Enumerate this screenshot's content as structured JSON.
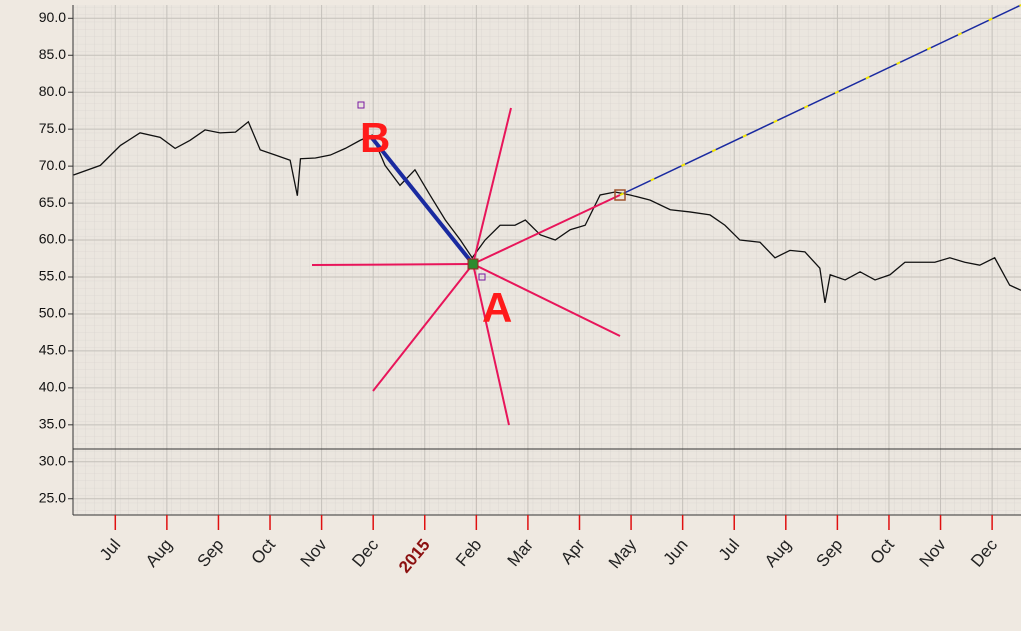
{
  "chart_data": {
    "type": "line",
    "annotations": [
      "A",
      "B"
    ],
    "xlim": [
      -0.82,
      17.56
    ],
    "xticks": [
      {
        "value": 0,
        "label": "Jul"
      },
      {
        "value": 1,
        "label": "Aug"
      },
      {
        "value": 2,
        "label": "Sep"
      },
      {
        "value": 3,
        "label": "Oct"
      },
      {
        "value": 4,
        "label": "Nov"
      },
      {
        "value": 5,
        "label": "Dec"
      },
      {
        "value": 6,
        "label": "2015"
      },
      {
        "value": 7,
        "label": "Feb"
      },
      {
        "value": 8,
        "label": "Mar"
      },
      {
        "value": 9,
        "label": "Apr"
      },
      {
        "value": 10,
        "label": "May"
      },
      {
        "value": 11,
        "label": "Jun"
      },
      {
        "value": 12,
        "label": "Jul"
      },
      {
        "value": 13,
        "label": "Aug"
      },
      {
        "value": 14,
        "label": "Sep"
      },
      {
        "value": 15,
        "label": "Oct"
      },
      {
        "value": 16,
        "label": "Nov"
      },
      {
        "value": 17,
        "label": "Dec"
      }
    ],
    "ylim": [
      22.8,
      91.8
    ],
    "yticks": [
      {
        "value": 90,
        "label": "90.0"
      },
      {
        "value": 85,
        "label": "85.0"
      },
      {
        "value": 80,
        "label": "80.0"
      },
      {
        "value": 75,
        "label": "75.0"
      },
      {
        "value": 70,
        "label": "70.0"
      },
      {
        "value": 65,
        "label": "65.0"
      },
      {
        "value": 60,
        "label": "60.0"
      },
      {
        "value": 55,
        "label": "55.0"
      },
      {
        "value": 50,
        "label": "50.0"
      },
      {
        "value": 45,
        "label": "45.0"
      },
      {
        "value": 40,
        "label": "40.0"
      },
      {
        "value": 35,
        "label": "35.0"
      },
      {
        "value": 30,
        "label": "30.0"
      },
      {
        "value": 25,
        "label": "25.0"
      }
    ],
    "grid": true,
    "x": [
      -0.81,
      -0.29,
      0.1,
      0.48,
      0.87,
      1.16,
      1.45,
      1.74,
      2.03,
      2.33,
      2.58,
      2.81,
      3.1,
      3.39,
      3.53,
      3.59,
      3.88,
      4.17,
      4.46,
      4.75,
      4.98,
      5.23,
      5.52,
      5.81,
      6.1,
      6.4,
      6.69,
      6.92,
      7.17,
      7.46,
      7.75,
      7.95,
      8.24,
      8.53,
      8.82,
      9.11,
      9.4,
      9.69,
      9.98,
      10.37,
      10.76,
      11.14,
      11.53,
      11.82,
      12.11,
      12.5,
      12.79,
      13.08,
      13.37,
      13.66,
      13.76,
      13.86,
      14.15,
      14.44,
      14.73,
      15.02,
      15.31,
      15.6,
      15.89,
      16.18,
      16.47,
      16.76,
      17.05,
      17.34,
      17.56
    ],
    "series": [
      {
        "color": "#111111",
        "values": [
          68.8,
          70.1,
          72.8,
          74.5,
          73.9,
          72.4,
          73.5,
          74.9,
          74.5,
          74.6,
          76,
          72.2,
          71.5,
          70.8,
          66,
          71,
          71.1,
          71.5,
          72.4,
          73.5,
          74.2,
          70.1,
          67.4,
          69.5,
          66.1,
          62.7,
          60,
          57.6,
          60,
          62,
          62,
          62.7,
          60.7,
          60,
          61.4,
          62,
          66.1,
          66.5,
          66.1,
          65.4,
          64.1,
          63.8,
          63.4,
          62,
          60,
          59.7,
          57.6,
          58.6,
          58.4,
          56.2,
          51.5,
          55.3,
          54.6,
          55.7,
          54.6,
          55.3,
          57,
          57,
          57,
          57.6,
          57,
          56.6,
          57.6,
          53.9,
          53.2
        ]
      }
    ]
  }
}
